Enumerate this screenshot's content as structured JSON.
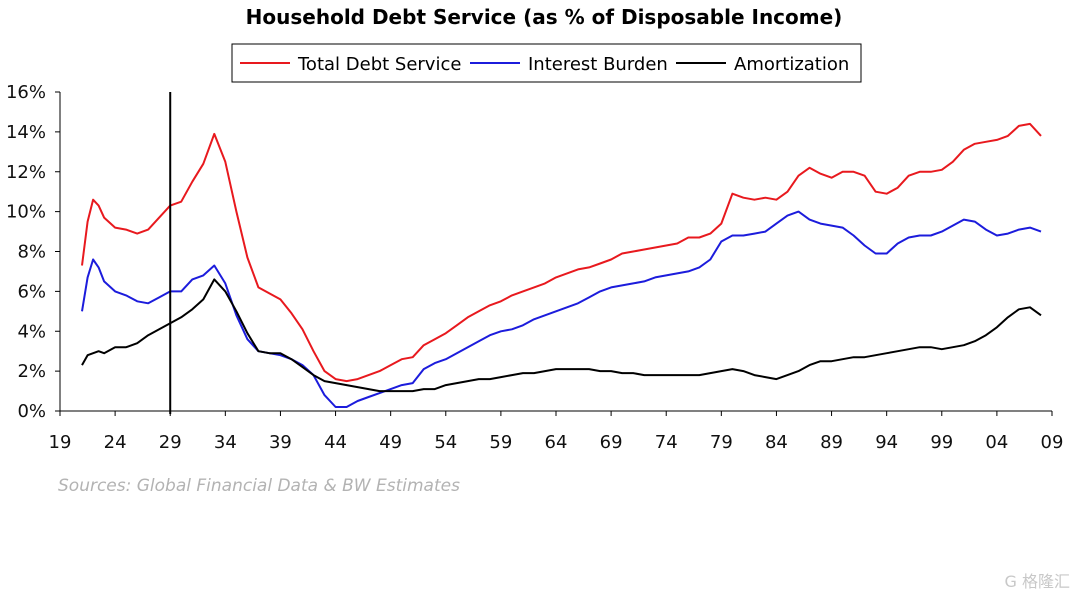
{
  "chart_data": {
    "type": "line",
    "title": "Household Debt Service (as % of Disposable Income)",
    "xlabel": "",
    "ylabel": "",
    "xlim": [
      1919,
      2009
    ],
    "ylim": [
      0,
      16
    ],
    "x_ticks": [
      1919,
      1924,
      1929,
      1934,
      1939,
      1944,
      1949,
      1954,
      1959,
      1964,
      1969,
      1974,
      1979,
      1984,
      1989,
      1994,
      1999,
      2004,
      2009
    ],
    "x_tick_labels": [
      "19",
      "24",
      "29",
      "34",
      "39",
      "44",
      "49",
      "54",
      "59",
      "64",
      "69",
      "74",
      "79",
      "84",
      "89",
      "94",
      "99",
      "04",
      "09"
    ],
    "y_ticks": [
      0,
      2,
      4,
      6,
      8,
      10,
      12,
      14,
      16
    ],
    "y_tick_labels": [
      "0%",
      "2%",
      "4%",
      "6%",
      "8%",
      "10%",
      "12%",
      "14%",
      "16%"
    ],
    "legend_position": "top-center",
    "grid": false,
    "vertical_marker_x": 1929,
    "series": [
      {
        "name": "Total Debt Service",
        "color": "#e8191e",
        "x": [
          1921,
          1921.5,
          1922,
          1922.5,
          1923,
          1924,
          1925,
          1926,
          1927,
          1928,
          1929,
          1930,
          1931,
          1932,
          1933,
          1934,
          1935,
          1936,
          1937,
          1938,
          1939,
          1940,
          1941,
          1942,
          1943,
          1944,
          1945,
          1946,
          1947,
          1948,
          1949,
          1950,
          1951,
          1952,
          1953,
          1954,
          1955,
          1956,
          1957,
          1958,
          1959,
          1960,
          1961,
          1962,
          1963,
          1964,
          1965,
          1966,
          1967,
          1968,
          1969,
          1970,
          1971,
          1972,
          1973,
          1974,
          1975,
          1976,
          1977,
          1978,
          1979,
          1980,
          1981,
          1982,
          1983,
          1984,
          1985,
          1986,
          1987,
          1988,
          1989,
          1990,
          1991,
          1992,
          1993,
          1994,
          1995,
          1996,
          1997,
          1998,
          1999,
          2000,
          2001,
          2002,
          2003,
          2004,
          2005,
          2006,
          2007,
          2008
        ],
        "values": [
          7.3,
          9.5,
          10.6,
          10.3,
          9.7,
          9.2,
          9.1,
          8.9,
          9.1,
          9.7,
          10.3,
          10.5,
          11.5,
          12.4,
          13.9,
          12.5,
          10.0,
          7.7,
          6.2,
          5.9,
          5.6,
          4.9,
          4.1,
          3.0,
          2.0,
          1.6,
          1.5,
          1.6,
          1.8,
          2.0,
          2.3,
          2.6,
          2.7,
          3.3,
          3.6,
          3.9,
          4.3,
          4.7,
          5.0,
          5.3,
          5.5,
          5.8,
          6.0,
          6.2,
          6.4,
          6.7,
          6.9,
          7.1,
          7.2,
          7.4,
          7.6,
          7.9,
          8.0,
          8.1,
          8.2,
          8.3,
          8.4,
          8.7,
          8.7,
          8.9,
          9.4,
          10.9,
          10.7,
          10.6,
          10.7,
          10.6,
          11.0,
          11.8,
          12.2,
          11.9,
          11.7,
          12.0,
          12.0,
          11.8,
          11.0,
          10.9,
          11.2,
          11.8,
          12.0,
          12.0,
          12.1,
          12.5,
          13.1,
          13.4,
          13.5,
          13.6,
          13.8,
          14.3,
          14.4,
          13.8
        ]
      },
      {
        "name": "Interest Burden",
        "color": "#1c1cdc",
        "x": [
          1921,
          1921.5,
          1922,
          1922.5,
          1923,
          1924,
          1925,
          1926,
          1927,
          1928,
          1929,
          1930,
          1931,
          1932,
          1933,
          1934,
          1935,
          1936,
          1937,
          1938,
          1939,
          1940,
          1941,
          1942,
          1943,
          1944,
          1945,
          1946,
          1947,
          1948,
          1949,
          1950,
          1951,
          1952,
          1953,
          1954,
          1955,
          1956,
          1957,
          1958,
          1959,
          1960,
          1961,
          1962,
          1963,
          1964,
          1965,
          1966,
          1967,
          1968,
          1969,
          1970,
          1971,
          1972,
          1973,
          1974,
          1975,
          1976,
          1977,
          1978,
          1979,
          1980,
          1981,
          1982,
          1983,
          1984,
          1985,
          1986,
          1987,
          1988,
          1989,
          1990,
          1991,
          1992,
          1993,
          1994,
          1995,
          1996,
          1997,
          1998,
          1999,
          2000,
          2001,
          2002,
          2003,
          2004,
          2005,
          2006,
          2007,
          2008
        ],
        "values": [
          5.0,
          6.7,
          7.6,
          7.2,
          6.5,
          6.0,
          5.8,
          5.5,
          5.4,
          5.7,
          6.0,
          6.0,
          6.6,
          6.8,
          7.3,
          6.4,
          4.8,
          3.6,
          3.0,
          2.9,
          2.8,
          2.6,
          2.3,
          1.8,
          0.8,
          0.2,
          0.2,
          0.5,
          0.7,
          0.9,
          1.1,
          1.3,
          1.4,
          2.1,
          2.4,
          2.6,
          2.9,
          3.2,
          3.5,
          3.8,
          4.0,
          4.1,
          4.3,
          4.6,
          4.8,
          5.0,
          5.2,
          5.4,
          5.7,
          6.0,
          6.2,
          6.3,
          6.4,
          6.5,
          6.7,
          6.8,
          6.9,
          7.0,
          7.2,
          7.6,
          8.5,
          8.8,
          8.8,
          8.9,
          9.0,
          9.4,
          9.8,
          10.0,
          9.6,
          9.4,
          9.3,
          9.2,
          8.8,
          8.3,
          7.9,
          7.9,
          8.4,
          8.7,
          8.8,
          8.8,
          9.0,
          9.3,
          9.6,
          9.5,
          9.1,
          8.8,
          8.9,
          9.1,
          9.2,
          9.0
        ]
      },
      {
        "name": "Amortization",
        "color": "#000000",
        "x": [
          1921,
          1921.5,
          1922,
          1922.5,
          1923,
          1924,
          1925,
          1926,
          1927,
          1928,
          1929,
          1930,
          1931,
          1932,
          1933,
          1934,
          1935,
          1936,
          1937,
          1938,
          1939,
          1940,
          1941,
          1942,
          1943,
          1944,
          1945,
          1946,
          1947,
          1948,
          1949,
          1950,
          1951,
          1952,
          1953,
          1954,
          1955,
          1956,
          1957,
          1958,
          1959,
          1960,
          1961,
          1962,
          1963,
          1964,
          1965,
          1966,
          1967,
          1968,
          1969,
          1970,
          1971,
          1972,
          1973,
          1974,
          1975,
          1976,
          1977,
          1978,
          1979,
          1980,
          1981,
          1982,
          1983,
          1984,
          1985,
          1986,
          1987,
          1988,
          1989,
          1990,
          1991,
          1992,
          1993,
          1994,
          1995,
          1996,
          1997,
          1998,
          1999,
          2000,
          2001,
          2002,
          2003,
          2004,
          2005,
          2006,
          2007,
          2008
        ],
        "values": [
          2.3,
          2.8,
          2.9,
          3.0,
          2.9,
          3.2,
          3.2,
          3.4,
          3.8,
          4.1,
          4.4,
          4.7,
          5.1,
          5.6,
          6.6,
          6.0,
          5.0,
          3.9,
          3.0,
          2.9,
          2.9,
          2.6,
          2.2,
          1.8,
          1.5,
          1.4,
          1.3,
          1.2,
          1.1,
          1.0,
          1.0,
          1.0,
          1.0,
          1.1,
          1.1,
          1.3,
          1.4,
          1.5,
          1.6,
          1.6,
          1.7,
          1.8,
          1.9,
          1.9,
          2.0,
          2.1,
          2.1,
          2.1,
          2.1,
          2.0,
          2.0,
          1.9,
          1.9,
          1.8,
          1.8,
          1.8,
          1.8,
          1.8,
          1.8,
          1.9,
          2.0,
          2.1,
          2.0,
          1.8,
          1.7,
          1.6,
          1.8,
          2.0,
          2.3,
          2.5,
          2.5,
          2.6,
          2.7,
          2.7,
          2.8,
          2.9,
          3.0,
          3.1,
          3.2,
          3.2,
          3.1,
          3.2,
          3.3,
          3.5,
          3.8,
          4.2,
          4.7,
          5.1,
          5.2,
          4.8
        ]
      }
    ]
  },
  "source_note": "Sources: Global Financial Data & BW Estimates",
  "watermark": "G 格隆汇"
}
